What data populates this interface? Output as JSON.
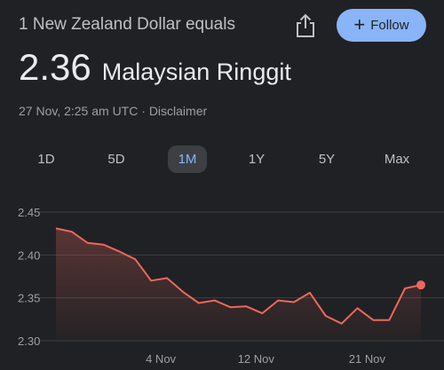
{
  "header": {
    "label": "1 New Zealand Dollar equals",
    "share_icon": "share-icon",
    "follow_label": "Follow",
    "follow_icon": "plus-icon"
  },
  "rate": {
    "value": "2.36",
    "currency": "Malaysian Ringgit"
  },
  "meta": {
    "timestamp": "27 Nov, 2:25 am UTC",
    "separator": "·",
    "disclaimer": "Disclaimer"
  },
  "tabs": [
    {
      "label": "1D",
      "active": false
    },
    {
      "label": "5D",
      "active": false
    },
    {
      "label": "1M",
      "active": true
    },
    {
      "label": "1Y",
      "active": false
    },
    {
      "label": "5Y",
      "active": false
    },
    {
      "label": "Max",
      "active": false
    }
  ],
  "colors": {
    "line": "#ee675c",
    "accent": "#8ab4f8"
  },
  "chart_data": {
    "type": "area",
    "ylim": [
      2.3,
      2.45
    ],
    "yticks": [
      2.45,
      2.4,
      2.35,
      2.3
    ],
    "ytick_labels": [
      "2.45",
      "2.40",
      "2.35",
      "2.30"
    ],
    "xticks": [
      {
        "label": "4 Nov",
        "index": 7
      },
      {
        "label": "12 Nov",
        "index": 13
      },
      {
        "label": "21 Nov",
        "index": 20
      }
    ],
    "grid": true,
    "series": [
      {
        "values": [
          2.431,
          2.427,
          2.414,
          2.412,
          2.404,
          2.395,
          2.37,
          2.373,
          2.357,
          2.344,
          2.347,
          2.339,
          2.34,
          2.332,
          2.347,
          2.345,
          2.356,
          2.329,
          2.32,
          2.338,
          2.324,
          2.324,
          2.361,
          2.365
        ]
      }
    ]
  }
}
